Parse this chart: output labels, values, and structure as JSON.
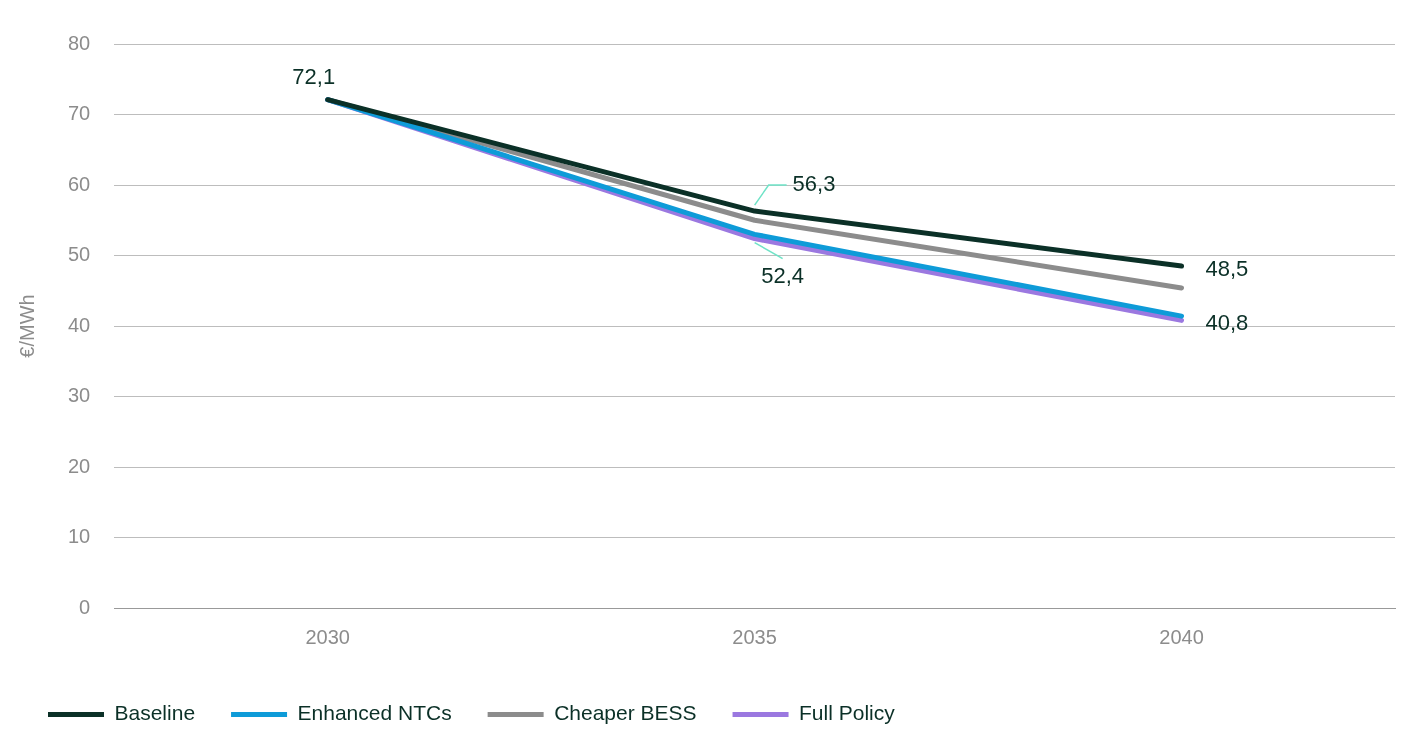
{
  "chart_data": {
    "type": "line",
    "ylabel": "€/MWh",
    "categories": [
      "2030",
      "2035",
      "2040"
    ],
    "series": [
      {
        "name": "Baseline",
        "color": "#0b3027",
        "values": [
          72.1,
          56.3,
          48.5
        ],
        "value_labels": [
          "72,1",
          "56,3",
          "48,5"
        ]
      },
      {
        "name": "Enhanced NTCs",
        "color": "#0e9bd8",
        "values": [
          72.1,
          53.0,
          41.4
        ]
      },
      {
        "name": "Cheaper BESS",
        "color": "#8c8c8c",
        "values": [
          72.1,
          55.0,
          45.4
        ]
      },
      {
        "name": "Full Policy",
        "color": "#9b78e0",
        "values": [
          72.1,
          52.4,
          40.8
        ],
        "value_labels": [
          null,
          "52,4",
          "40,8"
        ]
      }
    ],
    "ylim": [
      0,
      80
    ],
    "yticks": [
      0,
      10,
      20,
      30,
      40,
      50,
      60,
      70,
      80
    ],
    "grid": "y",
    "legend": "bottom left",
    "marker": "none",
    "line_style": "solid"
  }
}
